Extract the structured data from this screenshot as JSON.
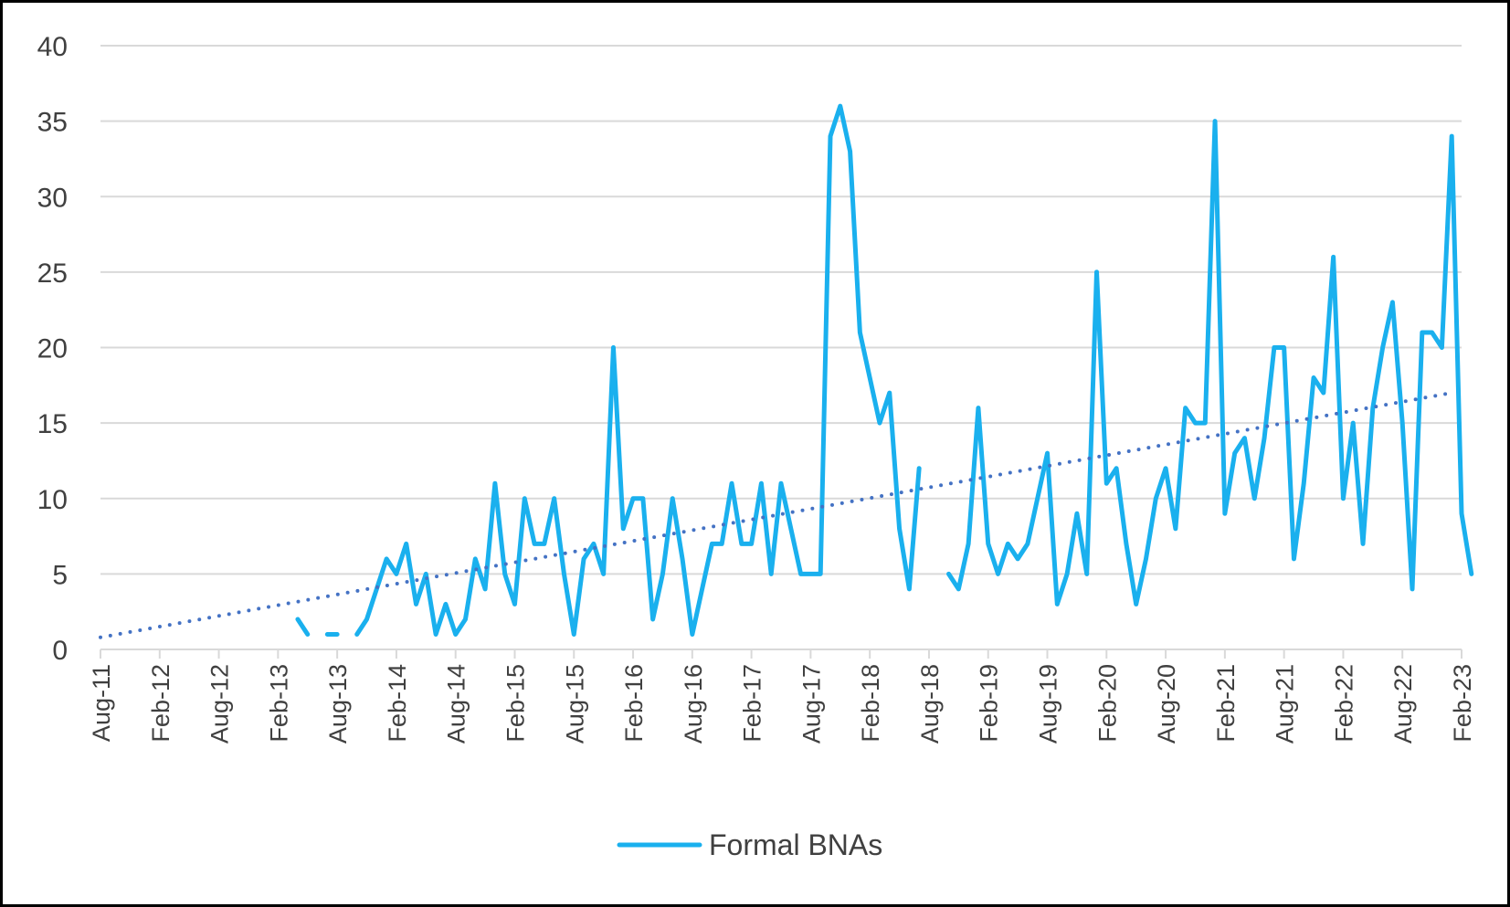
{
  "chart_data": {
    "type": "line",
    "x_start": "2011-08",
    "x_step": "month",
    "xlim": [
      "2011-08",
      "2023-02"
    ],
    "ylim": [
      0,
      40
    ],
    "y_ticks": [
      0,
      5,
      10,
      15,
      20,
      25,
      30,
      35,
      40
    ],
    "x_tick_labels": [
      "Aug-11",
      "Feb-12",
      "Aug-12",
      "Feb-13",
      "Aug-13",
      "Feb-14",
      "Aug-14",
      "Feb-15",
      "Aug-15",
      "Feb-16",
      "Aug-16",
      "Feb-17",
      "Aug-17",
      "Feb-18",
      "Aug-18",
      "Feb-19",
      "Aug-19",
      "Feb-20",
      "Aug-20",
      "Feb-21",
      "Aug-21",
      "Feb-22",
      "Aug-22",
      "Feb-23"
    ],
    "grid": "horizontal",
    "legend_position": "bottom",
    "series": [
      {
        "name": "Formal BNAs",
        "color": "#1AB0EE",
        "style": "solid",
        "values": [
          null,
          null,
          null,
          null,
          null,
          null,
          null,
          null,
          null,
          null,
          null,
          null,
          null,
          null,
          null,
          null,
          null,
          null,
          null,
          null,
          2,
          1,
          null,
          1,
          1,
          null,
          1,
          2,
          4,
          6,
          5,
          7,
          3,
          5,
          1,
          3,
          1,
          2,
          6,
          4,
          11,
          5,
          3,
          10,
          7,
          7,
          10,
          5,
          1,
          6,
          7,
          5,
          20,
          8,
          10,
          10,
          2,
          5,
          10,
          6,
          1,
          4,
          7,
          7,
          11,
          7,
          7,
          11,
          5,
          11,
          8,
          5,
          5,
          5,
          34,
          36,
          33,
          21,
          18,
          15,
          17,
          8,
          4,
          12,
          null,
          null,
          5,
          4,
          7,
          16,
          7,
          5,
          7,
          6,
          7,
          10,
          13,
          3,
          5,
          9,
          5,
          25,
          11,
          12,
          7,
          3,
          6,
          10,
          12,
          8,
          16,
          15,
          15,
          35,
          9,
          13,
          14,
          10,
          14,
          20,
          20,
          6,
          11,
          18,
          17,
          26,
          10,
          15,
          7,
          16,
          20,
          23,
          15,
          4,
          21,
          21,
          20,
          34,
          9,
          5
        ]
      },
      {
        "name": "",
        "color": "#4472C4",
        "style": "dotted",
        "trendline": true,
        "from": 0.8,
        "to": 17.0
      }
    ]
  }
}
